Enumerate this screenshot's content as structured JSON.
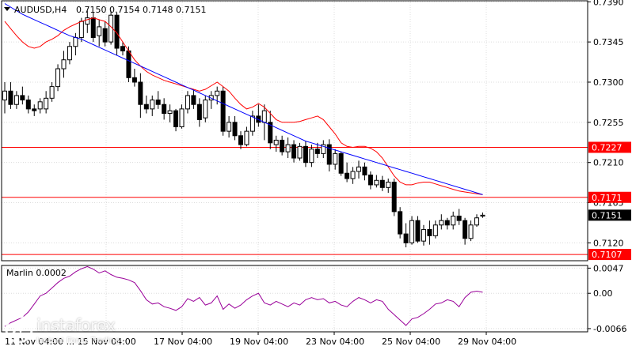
{
  "header": {
    "symbol": "AUDUSD,H4",
    "ohlc": "0.7150 0.7154 0.7148 0.7151"
  },
  "chart_data": [
    {
      "type": "candlestick",
      "title": "AUDUSD,H4",
      "ylim": [
        0.71,
        0.7392
      ],
      "y_ticks": [
        "0.7390",
        "0.7345",
        "0.7300",
        "0.7255",
        "0.7210",
        "0.7165",
        "0.7120"
      ],
      "x_ticks": [
        "17 Nov 04:00",
        "19 Nov 04:00",
        "23 Nov 04:00",
        "25 Nov 04:00",
        "29 Nov 04:00"
      ],
      "x_partial_label": "11 Nov 04:00 ... 15 Nov 04:00",
      "grid": true,
      "candles": [
        [
          0.728,
          0.73,
          0.7265,
          0.729
        ],
        [
          0.729,
          0.73,
          0.727,
          0.7275
        ],
        [
          0.7275,
          0.729,
          0.727,
          0.7285
        ],
        [
          0.7285,
          0.7295,
          0.7275,
          0.728
        ],
        [
          0.728,
          0.7285,
          0.7265,
          0.727
        ],
        [
          0.727,
          0.7275,
          0.7262,
          0.7268
        ],
        [
          0.727,
          0.7282,
          0.7265,
          0.7278
        ],
        [
          0.727,
          0.729,
          0.7265,
          0.7282
        ],
        [
          0.7282,
          0.73,
          0.7278,
          0.7295
        ],
        [
          0.7295,
          0.732,
          0.729,
          0.7315
        ],
        [
          0.7315,
          0.7335,
          0.7305,
          0.7325
        ],
        [
          0.7325,
          0.7345,
          0.732,
          0.734
        ],
        [
          0.734,
          0.7355,
          0.733,
          0.735
        ],
        [
          0.735,
          0.7372,
          0.7345,
          0.7368
        ],
        [
          0.7365,
          0.738,
          0.7355,
          0.7372
        ],
        [
          0.7372,
          0.7378,
          0.7345,
          0.735
        ],
        [
          0.7352,
          0.737,
          0.734,
          0.7362
        ],
        [
          0.736,
          0.7368,
          0.734,
          0.7345
        ],
        [
          0.7345,
          0.738,
          0.7342,
          0.7375
        ],
        [
          0.7375,
          0.7378,
          0.733,
          0.7338
        ],
        [
          0.734,
          0.7345,
          0.733,
          0.7335
        ],
        [
          0.7335,
          0.734,
          0.73,
          0.7305
        ],
        [
          0.7305,
          0.7315,
          0.7295,
          0.73
        ],
        [
          0.73,
          0.731,
          0.726,
          0.7275
        ],
        [
          0.7275,
          0.7285,
          0.7265,
          0.727
        ],
        [
          0.727,
          0.7285,
          0.7262,
          0.728
        ],
        [
          0.728,
          0.729,
          0.727,
          0.7275
        ],
        [
          0.7275,
          0.7282,
          0.7258,
          0.7265
        ],
        [
          0.7265,
          0.7275,
          0.7255,
          0.7268
        ],
        [
          0.7268,
          0.727,
          0.7245,
          0.725
        ],
        [
          0.725,
          0.7275,
          0.7248,
          0.727
        ],
        [
          0.727,
          0.729,
          0.7265,
          0.7285
        ],
        [
          0.7285,
          0.7292,
          0.727,
          0.7275
        ],
        [
          0.7275,
          0.7282,
          0.725,
          0.7258
        ],
        [
          0.726,
          0.7285,
          0.7255,
          0.728
        ],
        [
          0.728,
          0.729,
          0.727,
          0.7285
        ],
        [
          0.7285,
          0.7295,
          0.7275,
          0.729
        ],
        [
          0.729,
          0.7295,
          0.724,
          0.7245
        ],
        [
          0.7245,
          0.7262,
          0.7238,
          0.7255
        ],
        [
          0.7255,
          0.7262,
          0.7235,
          0.724
        ],
        [
          0.724,
          0.7245,
          0.7225,
          0.723
        ],
        [
          0.723,
          0.725,
          0.7228,
          0.7245
        ],
        [
          0.7245,
          0.7268,
          0.724,
          0.7262
        ],
        [
          0.7262,
          0.7275,
          0.725,
          0.7255
        ],
        [
          0.7255,
          0.7275,
          0.7235,
          0.7268
        ],
        [
          0.7255,
          0.7268,
          0.7225,
          0.7232
        ],
        [
          0.723,
          0.724,
          0.7222,
          0.7235
        ],
        [
          0.7235,
          0.724,
          0.7218,
          0.7222
        ],
        [
          0.7222,
          0.7238,
          0.7215,
          0.723
        ],
        [
          0.723,
          0.7235,
          0.721,
          0.7215
        ],
        [
          0.7215,
          0.7232,
          0.7212,
          0.7228
        ],
        [
          0.7228,
          0.7234,
          0.7205,
          0.721
        ],
        [
          0.721,
          0.723,
          0.7205,
          0.7225
        ],
        [
          0.7225,
          0.7232,
          0.7215,
          0.722
        ],
        [
          0.722,
          0.7235,
          0.7215,
          0.723
        ],
        [
          0.723,
          0.7236,
          0.72,
          0.7208
        ],
        [
          0.7208,
          0.7225,
          0.7202,
          0.722
        ],
        [
          0.722,
          0.7222,
          0.7195,
          0.7198
        ],
        [
          0.7198,
          0.721,
          0.7188,
          0.7192
        ],
        [
          0.7192,
          0.7205,
          0.7186,
          0.72
        ],
        [
          0.72,
          0.7212,
          0.7192,
          0.7205
        ],
        [
          0.7205,
          0.721,
          0.719,
          0.7196
        ],
        [
          0.7196,
          0.72,
          0.718,
          0.7185
        ],
        [
          0.7185,
          0.7196,
          0.7182,
          0.719
        ],
        [
          0.719,
          0.7195,
          0.7178,
          0.7182
        ],
        [
          0.7182,
          0.7192,
          0.7176,
          0.7188
        ],
        [
          0.7188,
          0.7192,
          0.715,
          0.7155
        ],
        [
          0.7155,
          0.716,
          0.7125,
          0.713
        ],
        [
          0.713,
          0.7142,
          0.7115,
          0.712
        ],
        [
          0.712,
          0.715,
          0.7118,
          0.7145
        ],
        [
          0.7145,
          0.715,
          0.712,
          0.7122
        ],
        [
          0.7122,
          0.714,
          0.7117,
          0.7135
        ],
        [
          0.7135,
          0.7145,
          0.7118,
          0.7128
        ],
        [
          0.7128,
          0.7145,
          0.7125,
          0.714
        ],
        [
          0.714,
          0.7152,
          0.7135,
          0.7145
        ],
        [
          0.7145,
          0.7148,
          0.7135,
          0.714
        ],
        [
          0.714,
          0.7155,
          0.7135,
          0.715
        ],
        [
          0.715,
          0.7158,
          0.714,
          0.7145
        ],
        [
          0.7145,
          0.7148,
          0.7118,
          0.7125
        ],
        [
          0.7125,
          0.7145,
          0.7122,
          0.714
        ],
        [
          0.714,
          0.7152,
          0.7138,
          0.7148
        ],
        [
          0.715,
          0.7154,
          0.7148,
          0.7151
        ]
      ],
      "series": [
        {
          "name": "",
          "color": "#ff0000",
          "values": [
            0.7368,
            0.736,
            0.7352,
            0.7345,
            0.734,
            0.7338,
            0.734,
            0.7345,
            0.7348,
            0.7352,
            0.7358,
            0.7362,
            0.7365,
            0.7368,
            0.737,
            0.7372,
            0.737,
            0.7368,
            0.7362,
            0.7355,
            0.7345,
            0.7335,
            0.7325,
            0.7318,
            0.7312,
            0.7308,
            0.7305,
            0.7302,
            0.73,
            0.7298,
            0.7296,
            0.7294,
            0.7292,
            0.729,
            0.7292,
            0.7296,
            0.73,
            0.7295,
            0.729,
            0.7282,
            0.7275,
            0.727,
            0.7272,
            0.7276,
            0.7272,
            0.7265,
            0.7258,
            0.7255,
            0.7255,
            0.7255,
            0.7256,
            0.7258,
            0.726,
            0.7262,
            0.7258,
            0.725,
            0.7242,
            0.7232,
            0.7228,
            0.7227,
            0.7228,
            0.7228,
            0.7226,
            0.7222,
            0.7215,
            0.7205,
            0.7195,
            0.7188,
            0.7185,
            0.7185,
            0.7187,
            0.7188,
            0.7188,
            0.7186,
            0.7184,
            0.7182,
            0.718,
            0.7178,
            0.7177,
            0.7176,
            0.7175,
            0.7174
          ]
        },
        {
          "name": "",
          "color": "#0000ff",
          "values": [
            0.7388,
            0.7384,
            0.738,
            0.7376,
            0.7373,
            0.737,
            0.7367,
            0.7364,
            0.7361,
            0.7358,
            0.7355,
            0.7352,
            0.735,
            0.7348,
            0.7345,
            0.7342,
            0.7339,
            0.7336,
            0.7333,
            0.733,
            0.7327,
            0.7324,
            0.7321,
            0.7318,
            0.7315,
            0.7312,
            0.7309,
            0.7306,
            0.7303,
            0.73,
            0.7297,
            0.7294,
            0.7291,
            0.7288,
            0.7285,
            0.7282,
            0.7279,
            0.7276,
            0.7273,
            0.727,
            0.7267,
            0.7264,
            0.7261,
            0.7258,
            0.7255,
            0.7252,
            0.7249,
            0.7246,
            0.7243,
            0.724,
            0.7237,
            0.7234,
            0.7232,
            0.723,
            0.7228,
            0.7226,
            0.7224,
            0.7222,
            0.722,
            0.7218,
            0.7216,
            0.7214,
            0.7212,
            0.721,
            0.7208,
            0.7206,
            0.7204,
            0.7202,
            0.72,
            0.7198,
            0.7196,
            0.7194,
            0.7192,
            0.719,
            0.7188,
            0.7186,
            0.7184,
            0.7182,
            0.718,
            0.7178,
            0.7176,
            0.7174
          ]
        }
      ],
      "levels": [
        {
          "value": 0.7227,
          "label": "0.7227",
          "color": "#ff0000"
        },
        {
          "value": 0.7171,
          "label": "0.7171",
          "color": "#ff0000"
        },
        {
          "value": 0.7107,
          "label": "0.7107",
          "color": "#ff0000"
        }
      ],
      "current": {
        "value": 0.7151,
        "label": "0.7151",
        "color": "#000000"
      }
    },
    {
      "type": "line",
      "title": "Marlin 0.0002",
      "ylim": [
        -0.0072,
        0.0052
      ],
      "y_ticks": [
        "0.0047",
        "0.00",
        "-0.0066"
      ],
      "grid": true,
      "series": [
        {
          "name": "",
          "color": "#990099",
          "values": [
            -0.0062,
            -0.0055,
            -0.005,
            -0.0045,
            -0.0035,
            -0.002,
            -0.0005,
            0.0,
            0.001,
            0.002,
            0.0028,
            0.0032,
            0.004,
            0.0046,
            0.005,
            0.0045,
            0.0038,
            0.0042,
            0.0035,
            0.003,
            0.0028,
            0.0025,
            0.002,
            0.0005,
            -0.0012,
            -0.002,
            -0.0018,
            -0.0025,
            -0.0028,
            -0.0032,
            -0.0025,
            -0.001,
            -0.0015,
            -0.0008,
            -0.0022,
            -0.0018,
            -0.0005,
            -0.003,
            -0.002,
            -0.0028,
            -0.0022,
            -0.0012,
            -0.0005,
            0.0,
            -0.0018,
            -0.0022,
            -0.0015,
            -0.002,
            -0.0025,
            -0.0018,
            -0.0022,
            -0.0012,
            -0.0008,
            -0.0012,
            -0.001,
            -0.0018,
            -0.0015,
            -0.0022,
            -0.0025,
            -0.0015,
            -0.0008,
            -0.0012,
            -0.0018,
            -0.0012,
            -0.0015,
            -0.003,
            -0.004,
            -0.005,
            -0.006,
            -0.0048,
            -0.0045,
            -0.0038,
            -0.003,
            -0.002,
            -0.0018,
            -0.0012,
            -0.0015,
            -0.0025,
            -0.0008,
            0.0002,
            0.0004,
            0.0002
          ]
        }
      ]
    }
  ],
  "watermark": {
    "brand": "instaforex",
    "tagline": "Instant Forex Trading"
  },
  "colors": {
    "bull": "#ffffff",
    "bear": "#000000",
    "grid": "#dcdcdc",
    "axis": "#000000",
    "level_line": "#ff0000",
    "ma_fast": "#ff0000",
    "ma_slow": "#0000ff",
    "oscillator": "#990099"
  }
}
